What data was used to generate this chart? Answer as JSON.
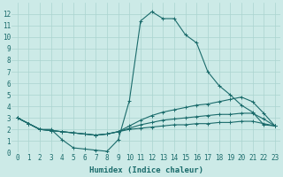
{
  "x": [
    0,
    1,
    2,
    3,
    4,
    5,
    6,
    7,
    8,
    9,
    10,
    11,
    12,
    13,
    14,
    15,
    16,
    17,
    18,
    19,
    20,
    21,
    22,
    23
  ],
  "series": [
    [
      3.0,
      2.5,
      2.0,
      2.0,
      1.1,
      0.4,
      0.3,
      0.2,
      0.1,
      1.1,
      4.5,
      11.4,
      12.2,
      11.6,
      11.6,
      10.2,
      9.5,
      7.0,
      5.8,
      5.0,
      4.1,
      3.5,
      2.4,
      2.3
    ],
    [
      3.0,
      2.5,
      2.0,
      1.9,
      1.8,
      1.7,
      1.6,
      1.5,
      1.6,
      1.8,
      2.3,
      2.8,
      3.2,
      3.5,
      3.7,
      3.9,
      4.1,
      4.2,
      4.4,
      4.6,
      4.8,
      4.4,
      3.4,
      2.3
    ],
    [
      3.0,
      2.5,
      2.0,
      1.9,
      1.8,
      1.7,
      1.6,
      1.5,
      1.6,
      1.8,
      2.1,
      2.4,
      2.6,
      2.8,
      2.9,
      3.0,
      3.1,
      3.2,
      3.3,
      3.3,
      3.4,
      3.4,
      2.9,
      2.3
    ],
    [
      3.0,
      2.5,
      2.0,
      1.9,
      1.8,
      1.7,
      1.6,
      1.5,
      1.6,
      1.8,
      2.0,
      2.1,
      2.2,
      2.3,
      2.4,
      2.4,
      2.5,
      2.5,
      2.6,
      2.6,
      2.7,
      2.7,
      2.5,
      2.3
    ]
  ],
  "line_color": "#1a6b6b",
  "bg_color": "#cceae7",
  "grid_color": "#aad4d0",
  "xlabel": "Humidex (Indice chaleur)",
  "ylim": [
    0,
    13
  ],
  "xlim": [
    -0.5,
    23.5
  ],
  "yticks": [
    0,
    1,
    2,
    3,
    4,
    5,
    6,
    7,
    8,
    9,
    10,
    11,
    12
  ],
  "xticks": [
    0,
    1,
    2,
    3,
    4,
    5,
    6,
    7,
    8,
    9,
    10,
    11,
    12,
    13,
    14,
    15,
    16,
    17,
    18,
    19,
    20,
    21,
    22,
    23
  ],
  "xlabel_fontsize": 6.5,
  "tick_fontsize": 5.5,
  "linewidth": 0.8,
  "markersize": 2.5,
  "marker": "+"
}
